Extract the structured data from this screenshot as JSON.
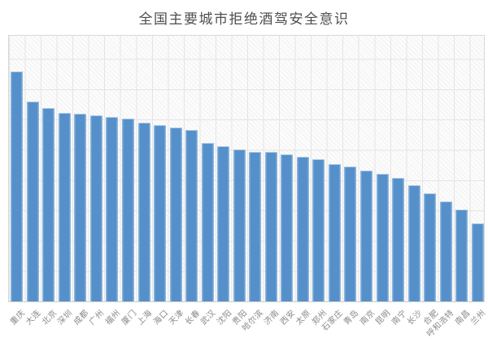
{
  "title": "全国主要城市拒绝酒驾安全意识",
  "chart_data": {
    "type": "bar",
    "title": "全国主要城市拒绝酒驾安全意识",
    "categories": [
      "重庆",
      "大连",
      "北京",
      "深圳",
      "成都",
      "广州",
      "福州",
      "厦门",
      "上海",
      "海口",
      "天津",
      "长春",
      "武汉",
      "沈阳",
      "贵阳",
      "哈尔滨",
      "济南",
      "西安",
      "太原",
      "郑州",
      "石家庄",
      "青岛",
      "南京",
      "昆明",
      "南宁",
      "长沙",
      "合肥",
      "呼和浩特",
      "南昌",
      "兰州"
    ],
    "values": [
      86.0,
      74.8,
      72.3,
      70.5,
      70.2,
      69.6,
      69.0,
      68.4,
      66.9,
      66.0,
      65.0,
      64.1,
      59.3,
      58.1,
      56.8,
      55.9,
      55.9,
      55.0,
      54.1,
      53.2,
      51.4,
      50.5,
      48.9,
      47.7,
      46.2,
      43.5,
      40.4,
      37.4,
      34.3,
      29.2
    ],
    "xlabel": "",
    "ylabel": "",
    "ylim": [
      0,
      100
    ],
    "y_axis_tick_labels_visible": false,
    "grid": true,
    "legend": false,
    "x_tick_label_rotation_deg": 45,
    "bar_color": "#5590cb",
    "bar_edge_color": "#a9c9e8",
    "gridline_color": "#e4e4e4",
    "plot_background": "hatched-light-gray",
    "title_color": "#4e4e4e",
    "tick_label_color": "#898989"
  }
}
